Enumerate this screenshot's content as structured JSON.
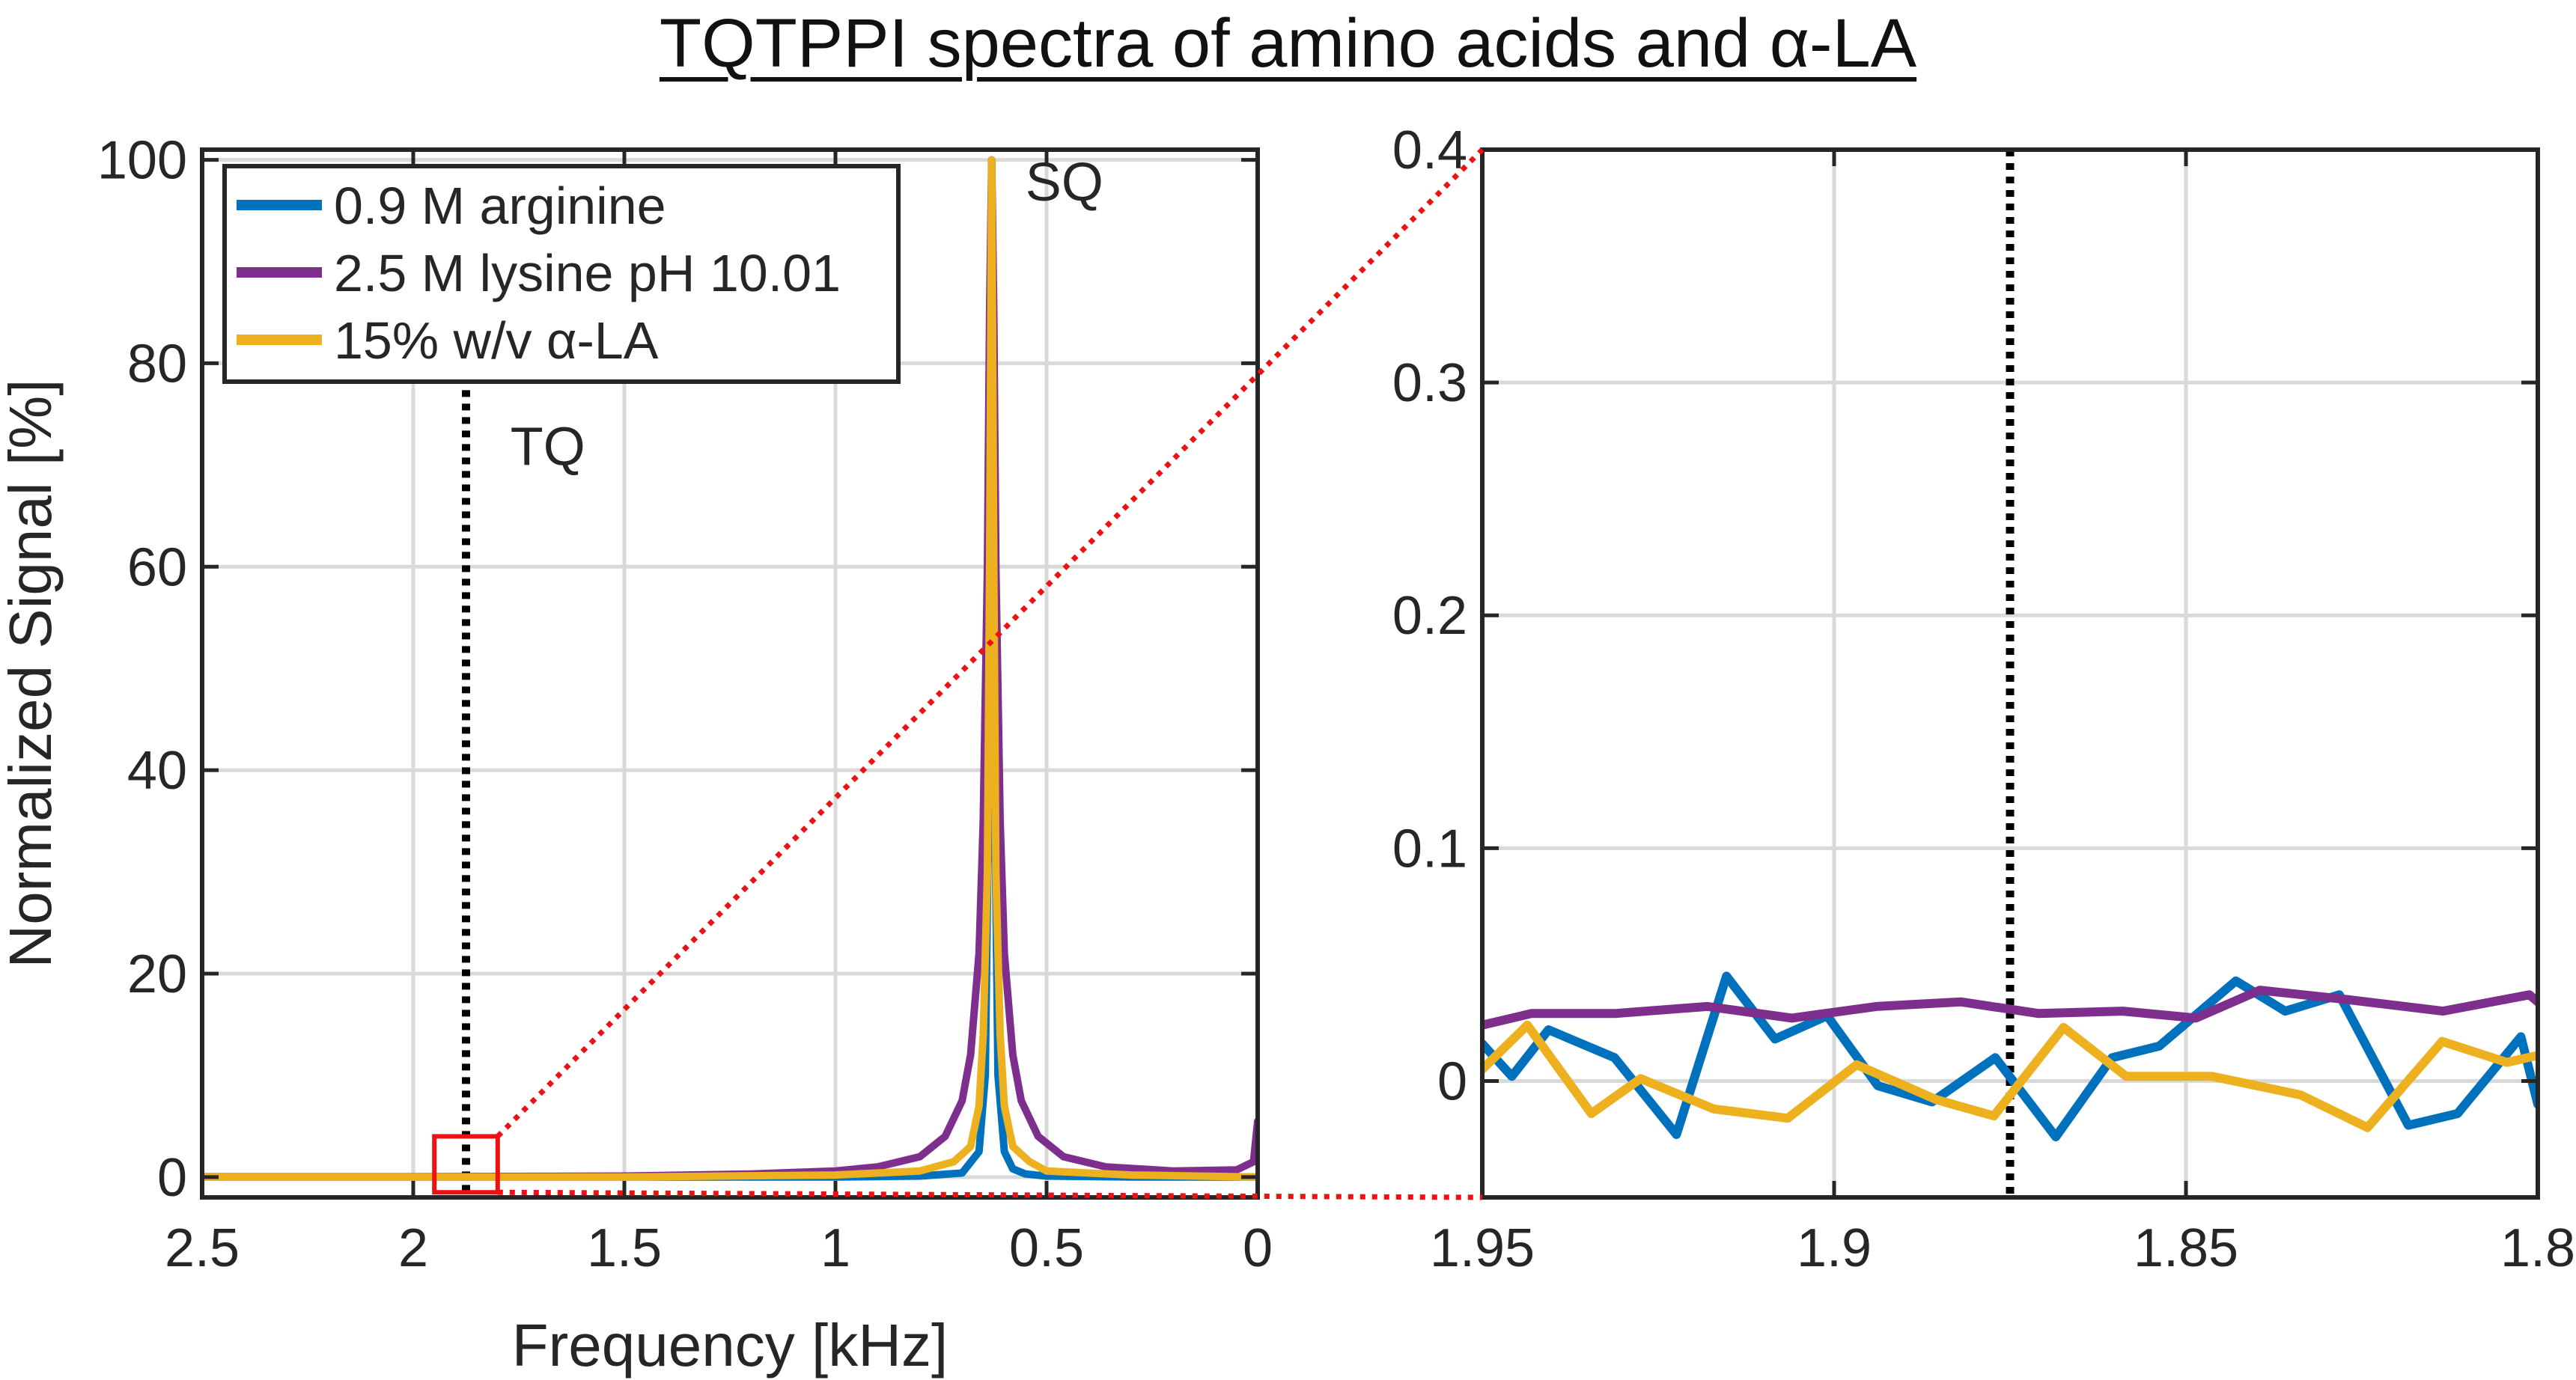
{
  "title": "TQTPPI spectra of amino acids and α-LA",
  "colors": {
    "arginine": "#0072BD",
    "lysine": "#7E2F8E",
    "ala": "#EDB120",
    "grid": "#d9d9d9",
    "axis": "#262626",
    "zoom": "#ee1111",
    "marker": "#000000"
  },
  "chart_data": [
    {
      "type": "line",
      "panel": "left",
      "xlabel": "Frequency [kHz]",
      "ylabel": "Normalized Signal [%]",
      "xlim": [
        2.5,
        0
      ],
      "ylim": [
        -2,
        101
      ],
      "xticks": [
        2.5,
        2,
        1.5,
        1,
        0.5,
        0
      ],
      "xtick_labels": [
        "2.5",
        "2",
        "1.5",
        "1",
        "0.5",
        "0"
      ],
      "yticks": [
        0,
        20,
        40,
        60,
        80,
        100
      ],
      "ytick_labels": [
        "0",
        "20",
        "40",
        "60",
        "80",
        "100"
      ],
      "legend": {
        "placement": "top-left",
        "entries": [
          "0.9 M arginine",
          "2.5 M lysine pH 10.01",
          "15% w/v α-LA"
        ]
      },
      "annotations": [
        {
          "text": "SQ",
          "x": 0.55,
          "y": 96
        },
        {
          "text": "TQ",
          "x": 1.77,
          "y": 70
        }
      ],
      "tq_line_x": 1.875,
      "sq_peak_x": 0.63,
      "zoom_box": {
        "x": [
          1.95,
          1.8
        ],
        "y": [
          -1.5,
          4
        ]
      },
      "series": [
        {
          "name": "0.9 M arginine",
          "x": [
            2.5,
            2.0,
            1.5,
            1.0,
            0.8,
            0.7,
            0.66,
            0.645,
            0.635,
            0.63,
            0.625,
            0.615,
            0.6,
            0.58,
            0.55,
            0.5,
            0.3,
            0.0
          ],
          "y": [
            0,
            0,
            0,
            0,
            0.1,
            0.4,
            2.5,
            10,
            45,
            100,
            45,
            10,
            2.5,
            0.8,
            0.3,
            0.1,
            0,
            0
          ]
        },
        {
          "name": "2.5 M lysine pH 10.01",
          "x": [
            2.5,
            2.0,
            1.5,
            1.2,
            1.0,
            0.9,
            0.8,
            0.74,
            0.7,
            0.68,
            0.66,
            0.65,
            0.64,
            0.635,
            0.63,
            0.625,
            0.62,
            0.61,
            0.6,
            0.58,
            0.56,
            0.52,
            0.46,
            0.36,
            0.2,
            0.05,
            0.01,
            0.0
          ],
          "y": [
            0.03,
            0.03,
            0.1,
            0.3,
            0.6,
            1.0,
            2.0,
            4.0,
            7.5,
            12,
            22,
            35,
            60,
            85,
            100,
            85,
            60,
            35,
            22,
            12,
            7.5,
            4.0,
            2.0,
            1.0,
            0.6,
            0.7,
            1.5,
            5.5
          ]
        },
        {
          "name": "15% w/v α-LA",
          "x": [
            2.5,
            2.0,
            1.5,
            1.0,
            0.8,
            0.72,
            0.68,
            0.66,
            0.65,
            0.64,
            0.635,
            0.63,
            0.625,
            0.62,
            0.61,
            0.6,
            0.58,
            0.54,
            0.5,
            0.3,
            0.0
          ],
          "y": [
            0,
            0,
            0,
            0.2,
            0.6,
            1.5,
            3,
            7,
            14,
            30,
            60,
            100,
            60,
            30,
            14,
            7,
            3,
            1.5,
            0.6,
            0.2,
            0
          ]
        }
      ]
    },
    {
      "type": "line",
      "panel": "right",
      "xlabel": "",
      "ylabel": "",
      "xlim": [
        1.95,
        1.8
      ],
      "ylim": [
        -0.05,
        0.4
      ],
      "xticks": [
        1.95,
        1.9,
        1.85,
        1.8
      ],
      "xtick_labels": [
        "1.95",
        "1.9",
        "1.85",
        "1.8"
      ],
      "yticks": [
        0,
        0.1,
        0.2,
        0.3,
        0.4
      ],
      "ytick_labels": [
        "0",
        "0.1",
        "0.2",
        "0.3",
        "0.4"
      ],
      "tq_line_x": 1.875,
      "series": [
        {
          "name": "0.9 M arginine",
          "x": [
            1.95,
            1.9458,
            1.9406,
            1.9312,
            1.9224,
            1.9153,
            1.9084,
            1.901,
            1.8938,
            1.8861,
            1.8771,
            1.8685,
            1.8605,
            1.8538,
            1.8429,
            1.8359,
            1.8282,
            1.8184,
            1.8114,
            1.8024,
            1.8
          ],
          "y": [
            0.016,
            0.002,
            0.022,
            0.01,
            -0.023,
            0.045,
            0.018,
            0.028,
            -0.002,
            -0.009,
            0.01,
            -0.024,
            0.01,
            0.015,
            0.043,
            0.03,
            0.037,
            -0.019,
            -0.014,
            0.019,
            -0.01
          ]
        },
        {
          "name": "2.5 M lysine pH 10.01",
          "x": [
            1.95,
            1.943,
            1.931,
            1.918,
            1.906,
            1.894,
            1.882,
            1.871,
            1.859,
            1.8486,
            1.8395,
            1.8271,
            1.8135,
            1.8012,
            1.8
          ],
          "y": [
            0.024,
            0.029,
            0.029,
            0.032,
            0.027,
            0.032,
            0.034,
            0.029,
            0.03,
            0.027,
            0.039,
            0.035,
            0.03,
            0.037,
            0.034
          ]
        },
        {
          "name": "15% w/v α-LA",
          "x": [
            1.95,
            1.9436,
            1.9345,
            1.9275,
            1.9171,
            1.9066,
            1.8968,
            1.8855,
            1.8773,
            1.8674,
            1.8585,
            1.8463,
            1.8337,
            1.8242,
            1.8136,
            1.8044,
            1.8
          ],
          "y": [
            0.005,
            0.024,
            -0.014,
            0.001,
            -0.012,
            -0.016,
            0.007,
            -0.008,
            -0.015,
            0.023,
            0.002,
            0.002,
            -0.006,
            -0.02,
            0.017,
            0.008,
            0.011
          ]
        }
      ]
    }
  ]
}
